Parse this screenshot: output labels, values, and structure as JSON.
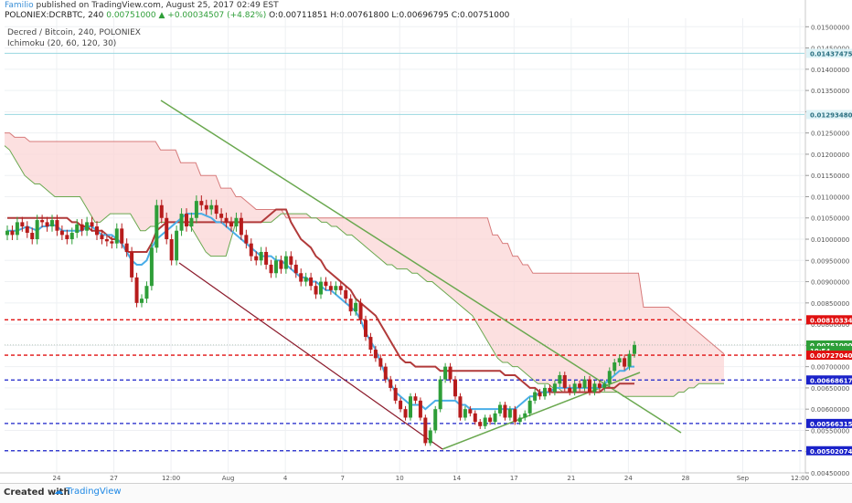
{
  "header": {
    "author": "Familio",
    "published": "published on TradingView.com, August 25, 2017 02:49 EST",
    "symbol_line_prefix": "POLONIEX:DCRBTC, 240",
    "last_price": "0.00751000",
    "change": "▲ +0.00034507 (+4.82%)",
    "ohlc": "O:0.00711851 H:0.00761800 L:0.00696795 C:0.00751000"
  },
  "legend": {
    "title": "Decred / Bitcoin, 240, POLONIEX",
    "indicator": "Ichimoku (20, 60, 120, 30)"
  },
  "footer": {
    "created_with": "Created with",
    "brand": "TradingView"
  },
  "colors": {
    "up": "#2e9e38",
    "down": "#b71c1c",
    "kumo_fill": "#fbd6d6",
    "span_a": "#6aa84f",
    "span_b": "#d77b7b",
    "tenkan": "#4aaee8",
    "kijun": "#b13a3a",
    "trend_green": "#6aa84f",
    "trend_dark": "#8b1a2b",
    "level_red": "#e01010",
    "level_blue": "#1a22c9"
  },
  "chart_data": {
    "type": "candlestick",
    "ylim": [
      0.0045,
      0.0152
    ],
    "x_ticks": [
      "24",
      "27",
      "12:00",
      "Aug",
      "4",
      "7",
      "10",
      "14",
      "17",
      "21",
      "24",
      "28",
      "Sep",
      "12:00"
    ],
    "y_ticks": [
      "0.01500000",
      "0.01450000",
      "0.01400000",
      "0.01350000",
      "0.01300000",
      "0.01250000",
      "0.01200000",
      "0.01150000",
      "0.01100000",
      "0.01050000",
      "0.01000000",
      "0.00950000",
      "0.00900000",
      "0.00850000",
      "0.00800000",
      "0.00750000",
      "0.00700000",
      "0.00650000",
      "0.00600000",
      "0.00550000",
      "0.00500000",
      "0.00450000"
    ],
    "price_labels": [
      {
        "value": 0.01437475,
        "text": "0.01437475",
        "style": "cyan"
      },
      {
        "value": 0.0129348,
        "text": "0.01293480",
        "style": "cyan"
      },
      {
        "value": 0.00810334,
        "text": "0.00810334",
        "style": "red"
      },
      {
        "value": 0.00751,
        "text": "0.00751000",
        "style": "green"
      },
      {
        "value": 0.00738,
        "text": "10:54",
        "style": "green"
      },
      {
        "value": 0.0072704,
        "text": "0.00727040",
        "style": "red"
      },
      {
        "value": 0.00668617,
        "text": "0.00668617",
        "style": "blue"
      },
      {
        "value": 0.00566315,
        "text": "0.00566315",
        "style": "blue"
      },
      {
        "value": 0.00502074,
        "text": "0.00502074",
        "style": "blue"
      }
    ],
    "horizontal_levels": [
      {
        "value": 0.01437475,
        "color": "cyan"
      },
      {
        "value": 0.0129348,
        "color": "cyan"
      },
      {
        "value": 0.00810334,
        "color": "red"
      },
      {
        "value": 0.0072704,
        "color": "red"
      },
      {
        "value": 0.00668617,
        "color": "blue"
      },
      {
        "value": 0.00566315,
        "color": "blue"
      },
      {
        "value": 0.00502074,
        "color": "blue"
      }
    ],
    "close_series": [
      0.0102,
      0.0101,
      0.0104,
      0.0103,
      0.01015,
      0.01,
      0.01045,
      0.0104,
      0.0103,
      0.01045,
      0.0102,
      0.0101,
      0.01,
      0.01015,
      0.01035,
      0.0102,
      0.0104,
      0.0103,
      0.0101,
      0.01,
      0.00995,
      0.0099,
      0.01025,
      0.0099,
      0.0097,
      0.0091,
      0.0085,
      0.0086,
      0.0089,
      0.0098,
      0.0108,
      0.0105,
      0.01,
      0.0095,
      0.0102,
      0.0106,
      0.0103,
      0.0105,
      0.0109,
      0.0108,
      0.0107,
      0.0108,
      0.0106,
      0.0105,
      0.0104,
      0.0103,
      0.0105,
      0.0101,
      0.0099,
      0.0096,
      0.0095,
      0.0097,
      0.0094,
      0.0092,
      0.0095,
      0.0093,
      0.0096,
      0.0094,
      0.0092,
      0.009,
      0.0091,
      0.0089,
      0.0087,
      0.009,
      0.0089,
      0.0088,
      0.0089,
      0.0088,
      0.0086,
      0.0083,
      0.0085,
      0.0081,
      0.0077,
      0.0074,
      0.0072,
      0.007,
      0.0067,
      0.0065,
      0.0062,
      0.006,
      0.0058,
      0.0063,
      0.0062,
      0.0058,
      0.0052,
      0.0055,
      0.006,
      0.0067,
      0.007,
      0.0067,
      0.0063,
      0.0058,
      0.006,
      0.0059,
      0.0057,
      0.0056,
      0.0058,
      0.0057,
      0.0059,
      0.0061,
      0.0058,
      0.006,
      0.0057,
      0.0058,
      0.0059,
      0.0062,
      0.0064,
      0.0063,
      0.0065,
      0.0064,
      0.0066,
      0.0068,
      0.0065,
      0.0064,
      0.0066,
      0.0065,
      0.0067,
      0.0064,
      0.0066,
      0.0065,
      0.0066,
      0.0069,
      0.0071,
      0.0072,
      0.007,
      0.0073,
      0.00751
    ],
    "tenkan": [
      0.0102,
      0.0102,
      0.0102,
      0.01025,
      0.0103,
      0.01025,
      0.0102,
      0.0103,
      0.0103,
      0.01035,
      0.0103,
      0.0102,
      0.0102,
      0.0102,
      0.0102,
      0.0102,
      0.0103,
      0.0103,
      0.0102,
      0.0101,
      0.0101,
      0.0101,
      0.01,
      0.0099,
      0.0097,
      0.0095,
      0.0094,
      0.0094,
      0.0095,
      0.0098,
      0.01,
      0.0101,
      0.0102,
      0.0103,
      0.0104,
      0.0105,
      0.0106,
      0.0106,
      0.0106,
      0.0106,
      0.01055,
      0.0105,
      0.0104,
      0.0104,
      0.0103,
      0.0102,
      0.0101,
      0.01,
      0.0099,
      0.0098,
      0.0097,
      0.0096,
      0.0096,
      0.0096,
      0.0095,
      0.0095,
      0.0094,
      0.0093,
      0.0092,
      0.0091,
      0.0091,
      0.009,
      0.009,
      0.0089,
      0.0088,
      0.0088,
      0.0087,
      0.0086,
      0.0085,
      0.0084,
      0.0083,
      0.0081,
      0.0078,
      0.0076,
      0.0074,
      0.0071,
      0.0068,
      0.0066,
      0.0064,
      0.0063,
      0.0062,
      0.0061,
      0.0061,
      0.0061,
      0.006,
      0.0061,
      0.0062,
      0.0062,
      0.0062,
      0.0062,
      0.0062,
      0.0061,
      0.0061,
      0.006,
      0.006,
      0.006,
      0.006,
      0.006,
      0.006,
      0.006,
      0.006,
      0.006,
      0.006,
      0.0061,
      0.0062,
      0.0063,
      0.0063,
      0.0064,
      0.0064,
      0.0064,
      0.0065,
      0.0065,
      0.0065,
      0.0065,
      0.0065,
      0.0065,
      0.0065,
      0.0065,
      0.0065,
      0.0065,
      0.0066,
      0.0067,
      0.0068,
      0.0069,
      0.0069,
      0.007,
      0.007
    ],
    "kijun": [
      0.0105,
      0.0105,
      0.0105,
      0.0105,
      0.0105,
      0.0105,
      0.0105,
      0.0105,
      0.0105,
      0.0105,
      0.0105,
      0.0105,
      0.0105,
      0.0104,
      0.0104,
      0.0103,
      0.0103,
      0.0102,
      0.0102,
      0.0102,
      0.0101,
      0.01,
      0.01,
      0.0099,
      0.0097,
      0.0097,
      0.0097,
      0.0097,
      0.0097,
      0.0099,
      0.0102,
      0.0103,
      0.0104,
      0.0104,
      0.0104,
      0.0104,
      0.0104,
      0.0104,
      0.0104,
      0.0104,
      0.0104,
      0.0104,
      0.0104,
      0.0104,
      0.0104,
      0.0104,
      0.0104,
      0.0104,
      0.0104,
      0.0104,
      0.0104,
      0.0104,
      0.0105,
      0.0106,
      0.0107,
      0.0107,
      0.0107,
      0.0104,
      0.0102,
      0.01,
      0.0099,
      0.0098,
      0.0096,
      0.0095,
      0.0093,
      0.0092,
      0.0091,
      0.009,
      0.0089,
      0.0088,
      0.0086,
      0.0085,
      0.0084,
      0.0083,
      0.0082,
      0.008,
      0.0078,
      0.0076,
      0.0074,
      0.0072,
      0.0071,
      0.0071,
      0.007,
      0.007,
      0.007,
      0.007,
      0.007,
      0.0069,
      0.0069,
      0.0069,
      0.0069,
      0.0069,
      0.0069,
      0.0069,
      0.0069,
      0.0069,
      0.0069,
      0.0069,
      0.0069,
      0.0069,
      0.0068,
      0.0068,
      0.0068,
      0.0067,
      0.0066,
      0.0065,
      0.0065,
      0.0064,
      0.0064,
      0.0064,
      0.0064,
      0.0064,
      0.0064,
      0.0064,
      0.0064,
      0.0064,
      0.0064,
      0.0064,
      0.0064,
      0.0064,
      0.0065,
      0.0065,
      0.0065,
      0.0066,
      0.0066,
      0.0066,
      0.0066
    ],
    "span_a": [
      0.0122,
      0.0121,
      0.0119,
      0.0117,
      0.0115,
      0.0114,
      0.0113,
      0.0113,
      0.0112,
      0.0111,
      0.011,
      0.011,
      0.011,
      0.011,
      0.011,
      0.011,
      0.0108,
      0.0106,
      0.0104,
      0.0104,
      0.0105,
      0.0106,
      0.0106,
      0.0106,
      0.0106,
      0.0106,
      0.0104,
      0.0102,
      0.0102,
      0.0103,
      0.0103,
      0.0104,
      0.0104,
      0.0104,
      0.0104,
      0.0104,
      0.0104,
      0.0103,
      0.0101,
      0.0099,
      0.0097,
      0.0096,
      0.0096,
      0.0096,
      0.0096,
      0.01,
      0.0104,
      0.0104,
      0.0104,
      0.0104,
      0.0104,
      0.0104,
      0.0104,
      0.0104,
      0.0105,
      0.0106,
      0.0106,
      0.0106,
      0.0106,
      0.0106,
      0.0106,
      0.0105,
      0.0105,
      0.0104,
      0.0104,
      0.0103,
      0.0103,
      0.0102,
      0.0101,
      0.0101,
      0.01,
      0.0099,
      0.0098,
      0.0097,
      0.0096,
      0.0095,
      0.0094,
      0.0094,
      0.0093,
      0.0093,
      0.0093,
      0.0092,
      0.0092,
      0.0091,
      0.009,
      0.009,
      0.0089,
      0.0088,
      0.0087,
      0.0086,
      0.0085,
      0.0084,
      0.0083,
      0.0082,
      0.008,
      0.0078,
      0.0076,
      0.0074,
      0.0072,
      0.0071,
      0.0071,
      0.007,
      0.007,
      0.0069,
      0.0068,
      0.0067,
      0.0066,
      0.0066,
      0.0066,
      0.0065,
      0.0065,
      0.0064,
      0.0064,
      0.0064,
      0.0064,
      0.0064,
      0.0064,
      0.0064,
      0.0064,
      0.0064,
      0.0064,
      0.0064,
      0.0064,
      0.0063,
      0.0063,
      0.0063,
      0.0063,
      0.0063,
      0.0063,
      0.0063,
      0.0063,
      0.0063,
      0.0063,
      0.0063,
      0.0064,
      0.0064,
      0.0065,
      0.0065,
      0.0066,
      0.0066,
      0.0066,
      0.0066,
      0.0066,
      0.0066
    ],
    "span_b": [
      0.0125,
      0.0125,
      0.0124,
      0.0124,
      0.0124,
      0.0123,
      0.0123,
      0.0123,
      0.0123,
      0.0123,
      0.0123,
      0.0123,
      0.0123,
      0.0123,
      0.0123,
      0.0123,
      0.0123,
      0.0123,
      0.0123,
      0.0123,
      0.0123,
      0.0123,
      0.0123,
      0.0123,
      0.0123,
      0.0123,
      0.0123,
      0.0123,
      0.0123,
      0.0123,
      0.0123,
      0.0121,
      0.0121,
      0.0121,
      0.0121,
      0.0118,
      0.0118,
      0.0118,
      0.0118,
      0.0115,
      0.0115,
      0.0115,
      0.0115,
      0.0112,
      0.0112,
      0.0112,
      0.011,
      0.011,
      0.0109,
      0.0108,
      0.0107,
      0.0107,
      0.0107,
      0.0107,
      0.0107,
      0.0107,
      0.0105,
      0.0105,
      0.0105,
      0.0105,
      0.0105,
      0.0105,
      0.0105,
      0.0105,
      0.0105,
      0.0105,
      0.0105,
      0.0105,
      0.0105,
      0.0105,
      0.0105,
      0.0105,
      0.0105,
      0.0105,
      0.0105,
      0.0105,
      0.0105,
      0.0105,
      0.0105,
      0.0105,
      0.0105,
      0.0105,
      0.0105,
      0.0105,
      0.0105,
      0.0105,
      0.0105,
      0.0105,
      0.0105,
      0.0105,
      0.0105,
      0.0105,
      0.0105,
      0.0105,
      0.0105,
      0.0105,
      0.0105,
      0.0101,
      0.0101,
      0.0099,
      0.0099,
      0.0096,
      0.0096,
      0.0094,
      0.0094,
      0.0092,
      0.0092,
      0.0092,
      0.0092,
      0.0092,
      0.0092,
      0.0092,
      0.0092,
      0.0092,
      0.0092,
      0.0092,
      0.0092,
      0.0092,
      0.0092,
      0.0092,
      0.0092,
      0.0092,
      0.0092,
      0.0092,
      0.0092,
      0.0092,
      0.0092,
      0.0084,
      0.0084,
      0.0084,
      0.0084,
      0.0084,
      0.0084,
      0.0083,
      0.0082,
      0.0081,
      0.008,
      0.0079,
      0.0078,
      0.0077,
      0.0076,
      0.0075,
      0.0074,
      0.0073
    ]
  }
}
